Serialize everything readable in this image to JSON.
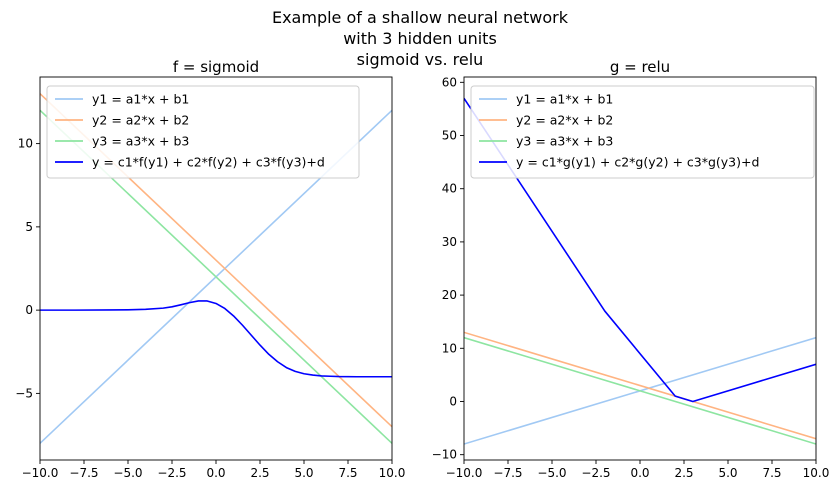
{
  "figure": {
    "suptitle_lines": [
      "Example of a shallow neural network",
      "with 3 hidden units",
      "sigmoid vs. relu"
    ]
  },
  "chart_data": [
    {
      "type": "line",
      "title": "f = sigmoid",
      "xlim": [
        -10,
        10
      ],
      "ylim": [
        -9,
        14
      ],
      "xticks": [
        -10.0,
        -7.5,
        -5.0,
        -2.5,
        0.0,
        2.5,
        5.0,
        7.5,
        10.0
      ],
      "xtick_labels": [
        "−10.0",
        "−7.5",
        "−5.0",
        "−2.5",
        "0.0",
        "2.5",
        "5.0",
        "7.5",
        "10.0"
      ],
      "yticks": [
        -5,
        0,
        5,
        10
      ],
      "ytick_labels": [
        "−5",
        "0",
        "5",
        "10"
      ],
      "grid": false,
      "legend_position": "upper-left",
      "series": [
        {
          "name": "y1 = a1*x + b1",
          "color": "#a1c9f4",
          "x": [
            -10,
            10
          ],
          "y": [
            -8,
            12
          ]
        },
        {
          "name": "y2 = a2*x + b2",
          "color": "#ffb482",
          "x": [
            -10,
            10
          ],
          "y": [
            13,
            -7
          ]
        },
        {
          "name": "y3 = a3*x + b3",
          "color": "#8de5a1",
          "x": [
            -10,
            10
          ],
          "y": [
            12,
            -8
          ]
        },
        {
          "name": "y = c1*f(y1) + c2*f(y2) + c3*f(y3)+d",
          "color": "#0000ff",
          "x": [
            -10,
            -8,
            -6,
            -5,
            -4,
            -3,
            -2.5,
            -2,
            -1.5,
            -1,
            -0.5,
            0,
            0.5,
            1,
            1.5,
            2,
            2.5,
            3,
            3.5,
            4,
            4.5,
            5,
            5.5,
            6,
            6.5,
            7,
            8,
            9,
            10
          ],
          "y": [
            0,
            0,
            0.01,
            0.02,
            0.05,
            0.12,
            0.2,
            0.32,
            0.45,
            0.55,
            0.55,
            0.4,
            0.1,
            -0.35,
            -0.9,
            -1.5,
            -2.1,
            -2.65,
            -3.1,
            -3.45,
            -3.68,
            -3.82,
            -3.9,
            -3.95,
            -3.97,
            -3.99,
            -4.0,
            -4.0,
            -4.0
          ]
        }
      ]
    },
    {
      "type": "line",
      "title": "g = relu",
      "xlim": [
        -10,
        10
      ],
      "ylim": [
        -11,
        61
      ],
      "xticks": [
        -10.0,
        -7.5,
        -5.0,
        -2.5,
        0.0,
        2.5,
        5.0,
        7.5,
        10.0
      ],
      "xtick_labels": [
        "−10.0",
        "−7.5",
        "−5.0",
        "−2.5",
        "0.0",
        "2.5",
        "5.0",
        "7.5",
        "10.0"
      ],
      "yticks": [
        -10,
        0,
        10,
        20,
        30,
        40,
        50,
        60
      ],
      "ytick_labels": [
        "−10",
        "0",
        "10",
        "20",
        "30",
        "40",
        "50",
        "60"
      ],
      "grid": false,
      "legend_position": "upper-left",
      "series": [
        {
          "name": "y1 = a1*x + b1",
          "color": "#a1c9f4",
          "x": [
            -10,
            10
          ],
          "y": [
            -8,
            12
          ]
        },
        {
          "name": "y2 = a2*x + b2",
          "color": "#ffb482",
          "x": [
            -10,
            10
          ],
          "y": [
            13,
            -7
          ]
        },
        {
          "name": "y3 = a3*x + b3",
          "color": "#8de5a1",
          "x": [
            -10,
            10
          ],
          "y": [
            12,
            -8
          ]
        },
        {
          "name": "y = c1*g(y1) + c2*g(y2) + c3*g(y3)+d",
          "color": "#0000ff",
          "x": [
            -10,
            -2,
            2,
            3,
            10
          ],
          "y": [
            57,
            17,
            1,
            0,
            7
          ]
        }
      ]
    }
  ]
}
